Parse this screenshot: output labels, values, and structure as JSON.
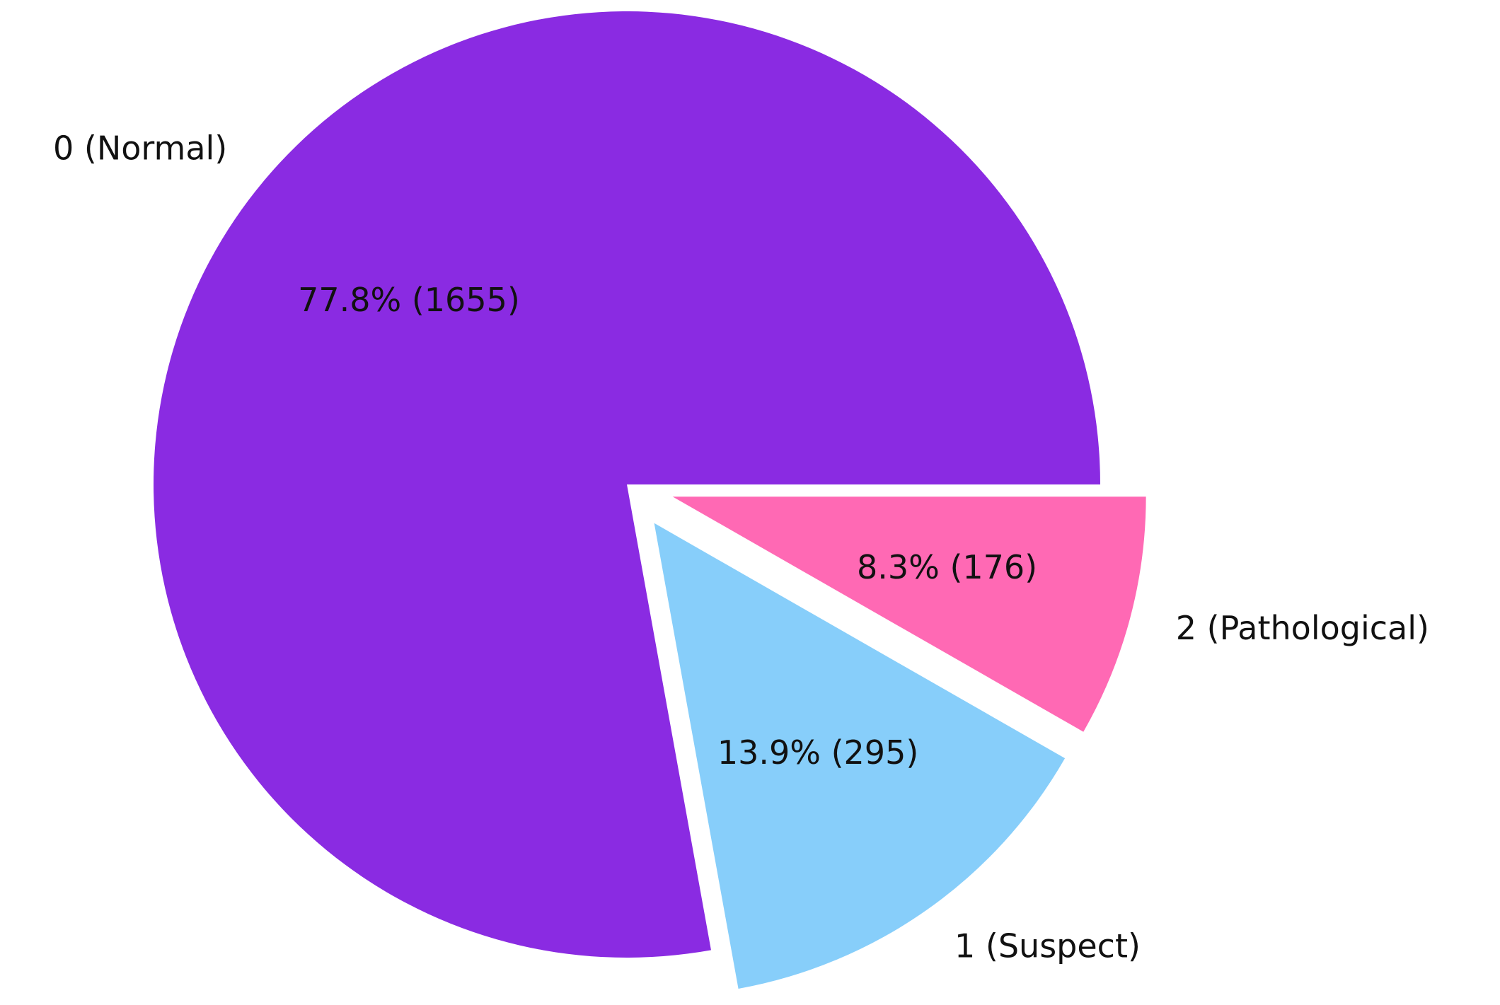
{
  "chart_data": {
    "type": "pie",
    "categories": [
      "0 (Normal)",
      "1 (Suspect)",
      "2 (Pathological)"
    ],
    "values": [
      1655,
      295,
      176
    ],
    "value_labels": [
      "77.8% (1655)",
      "13.9% (295)",
      "8.3% (176)"
    ],
    "colors": [
      "#8a2be2",
      "#87cefa",
      "#ff69b4"
    ],
    "explode": [
      0,
      0.1,
      0.1
    ],
    "start_angle": 0
  }
}
